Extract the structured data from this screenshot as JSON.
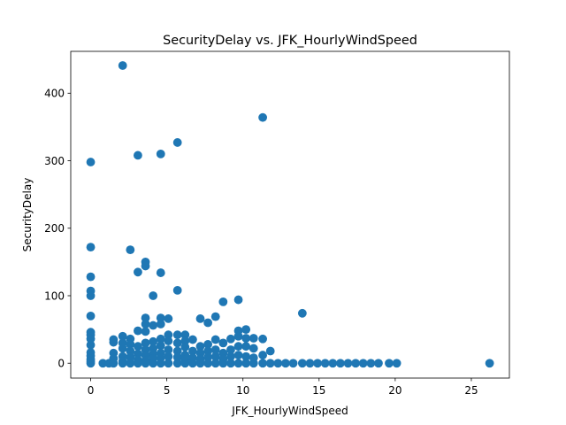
{
  "chart_data": {
    "type": "scatter",
    "title": "SecurityDelay vs. JFK_HourlyWindSpeed",
    "xlabel": "JFK_HourlyWindSpeed",
    "ylabel": "SecurityDelay",
    "xlim": [
      -1.31,
      27.5
    ],
    "ylim": [
      -22,
      462
    ],
    "xticks": [
      0,
      5,
      10,
      15,
      20,
      25
    ],
    "yticks": [
      0,
      100,
      200,
      300,
      400
    ],
    "grid": false,
    "marker_color": "#1f77b4",
    "points": [
      [
        0,
        298
      ],
      [
        0,
        172
      ],
      [
        0,
        128
      ],
      [
        0,
        107
      ],
      [
        0,
        100
      ],
      [
        0,
        70
      ],
      [
        0,
        46
      ],
      [
        0,
        42
      ],
      [
        0,
        36
      ],
      [
        0,
        27
      ],
      [
        0,
        16
      ],
      [
        0,
        11
      ],
      [
        0,
        6
      ],
      [
        0,
        3
      ],
      [
        0,
        0
      ],
      [
        0.8,
        0
      ],
      [
        1.2,
        0
      ],
      [
        1.5,
        35
      ],
      [
        1.5,
        31
      ],
      [
        1.5,
        15
      ],
      [
        1.5,
        7
      ],
      [
        1.5,
        0
      ],
      [
        2.1,
        441
      ],
      [
        2.1,
        40
      ],
      [
        2.1,
        30
      ],
      [
        2.1,
        22
      ],
      [
        2.1,
        10
      ],
      [
        2.1,
        3
      ],
      [
        2.1,
        0
      ],
      [
        2.6,
        168
      ],
      [
        2.6,
        36
      ],
      [
        2.6,
        28
      ],
      [
        2.6,
        18
      ],
      [
        2.6,
        9
      ],
      [
        2.6,
        0
      ],
      [
        3.1,
        308
      ],
      [
        3.1,
        135
      ],
      [
        3.1,
        48
      ],
      [
        3.1,
        25
      ],
      [
        3.1,
        14
      ],
      [
        3.1,
        5
      ],
      [
        3.1,
        0
      ],
      [
        3.6,
        150
      ],
      [
        3.6,
        144
      ],
      [
        3.6,
        67
      ],
      [
        3.6,
        58
      ],
      [
        3.6,
        47
      ],
      [
        3.6,
        30
      ],
      [
        3.6,
        20
      ],
      [
        3.6,
        12
      ],
      [
        3.6,
        4
      ],
      [
        3.6,
        0
      ],
      [
        4.1,
        100
      ],
      [
        4.1,
        56
      ],
      [
        4.1,
        32
      ],
      [
        4.1,
        22
      ],
      [
        4.1,
        14
      ],
      [
        4.1,
        7
      ],
      [
        4.1,
        0
      ],
      [
        4.6,
        310
      ],
      [
        4.6,
        134
      ],
      [
        4.6,
        67
      ],
      [
        4.6,
        58
      ],
      [
        4.6,
        36
      ],
      [
        4.6,
        26
      ],
      [
        4.6,
        15
      ],
      [
        4.6,
        8
      ],
      [
        4.6,
        0
      ],
      [
        5.1,
        66
      ],
      [
        5.1,
        42
      ],
      [
        5.1,
        33
      ],
      [
        5.1,
        20
      ],
      [
        5.1,
        10
      ],
      [
        5.1,
        0
      ],
      [
        5.7,
        327
      ],
      [
        5.7,
        108
      ],
      [
        5.7,
        42
      ],
      [
        5.7,
        30
      ],
      [
        5.7,
        18
      ],
      [
        5.7,
        9
      ],
      [
        5.7,
        0
      ],
      [
        6.2,
        42
      ],
      [
        6.2,
        33
      ],
      [
        6.2,
        24
      ],
      [
        6.2,
        12
      ],
      [
        6.2,
        5
      ],
      [
        6.2,
        0
      ],
      [
        6.7,
        35
      ],
      [
        6.7,
        18
      ],
      [
        6.7,
        8
      ],
      [
        6.7,
        0
      ],
      [
        7.2,
        66
      ],
      [
        7.2,
        25
      ],
      [
        7.2,
        15
      ],
      [
        7.2,
        6
      ],
      [
        7.2,
        0
      ],
      [
        7.7,
        60
      ],
      [
        7.7,
        28
      ],
      [
        7.7,
        18
      ],
      [
        7.7,
        9
      ],
      [
        7.7,
        0
      ],
      [
        8.2,
        69
      ],
      [
        8.2,
        35
      ],
      [
        8.2,
        20
      ],
      [
        8.2,
        10
      ],
      [
        8.2,
        0
      ],
      [
        8.7,
        91
      ],
      [
        8.7,
        30
      ],
      [
        8.7,
        15
      ],
      [
        8.7,
        6
      ],
      [
        8.7,
        0
      ],
      [
        9.2,
        36
      ],
      [
        9.2,
        20
      ],
      [
        9.2,
        10
      ],
      [
        9.2,
        0
      ],
      [
        9.7,
        94
      ],
      [
        9.7,
        48
      ],
      [
        9.7,
        40
      ],
      [
        9.7,
        25
      ],
      [
        9.7,
        12
      ],
      [
        9.7,
        0
      ],
      [
        10.2,
        50
      ],
      [
        10.2,
        37
      ],
      [
        10.2,
        25
      ],
      [
        10.2,
        10
      ],
      [
        10.2,
        0
      ],
      [
        10.7,
        37
      ],
      [
        10.7,
        22
      ],
      [
        10.7,
        8
      ],
      [
        10.7,
        0
      ],
      [
        11.3,
        364
      ],
      [
        11.3,
        36
      ],
      [
        11.3,
        12
      ],
      [
        11.3,
        0
      ],
      [
        11.8,
        18
      ],
      [
        11.8,
        0
      ],
      [
        12.3,
        0
      ],
      [
        12.8,
        0
      ],
      [
        13.3,
        0
      ],
      [
        13.9,
        74
      ],
      [
        13.9,
        0
      ],
      [
        14.4,
        0
      ],
      [
        14.9,
        0
      ],
      [
        15.4,
        0
      ],
      [
        15.9,
        0
      ],
      [
        16.4,
        0
      ],
      [
        16.9,
        0
      ],
      [
        17.4,
        0
      ],
      [
        17.9,
        0
      ],
      [
        18.4,
        0
      ],
      [
        18.9,
        0
      ],
      [
        19.6,
        0
      ],
      [
        20.1,
        0
      ],
      [
        26.2,
        0
      ]
    ]
  }
}
